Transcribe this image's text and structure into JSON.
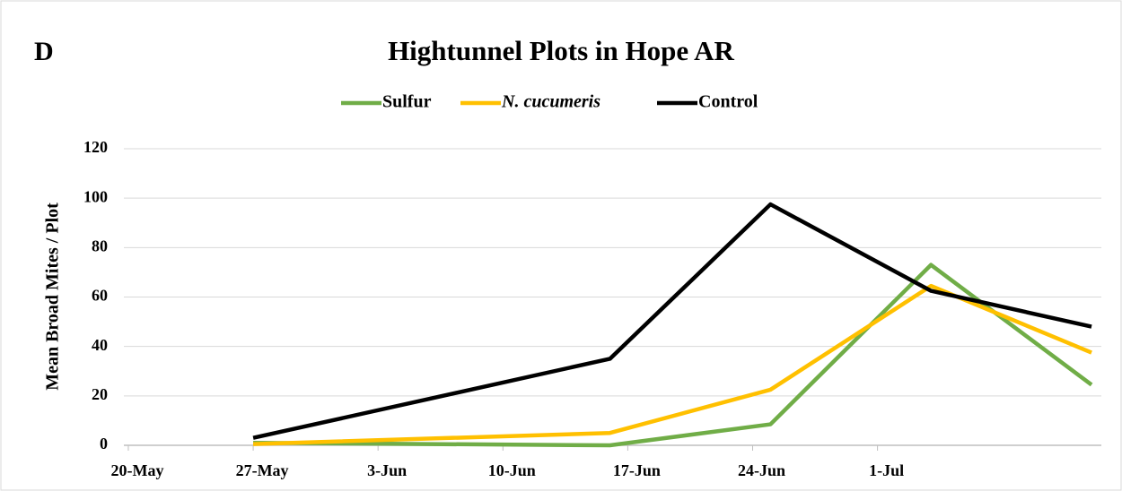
{
  "chart_data": {
    "type": "line",
    "panel_label": "D",
    "title": "Hightunnel Plots in Hope AR",
    "y_label": "Mean Broad Mites / Plot",
    "x": [
      147,
      167,
      176,
      185,
      194
    ],
    "series": [
      {
        "name": "Sulfur",
        "color": "#70ad47",
        "values": [
          1,
          0,
          8.5,
          73,
          24.5
        ]
      },
      {
        "name": "N. cucumeris",
        "color": "#ffc000",
        "values": [
          0.5,
          5,
          22.5,
          64.5,
          37.5
        ]
      },
      {
        "name": "Control",
        "color": "#000000",
        "values": [
          3,
          35,
          97.5,
          62.5,
          48
        ]
      }
    ],
    "xlim": [
      139.75,
      194.55
    ],
    "xticks": [
      {
        "value": 140,
        "label": "20-May"
      },
      {
        "value": 147,
        "label": "27-May"
      },
      {
        "value": 154,
        "label": "3-Jun"
      },
      {
        "value": 161,
        "label": "10-Jun"
      },
      {
        "value": 168,
        "label": "17-Jun"
      },
      {
        "value": 175,
        "label": "24-Jun"
      },
      {
        "value": 182,
        "label": "1-Jul"
      }
    ],
    "ylim": [
      0,
      120
    ],
    "yticks": [
      0,
      20,
      40,
      60,
      80,
      100,
      120
    ],
    "grid": true,
    "legend": "top"
  }
}
